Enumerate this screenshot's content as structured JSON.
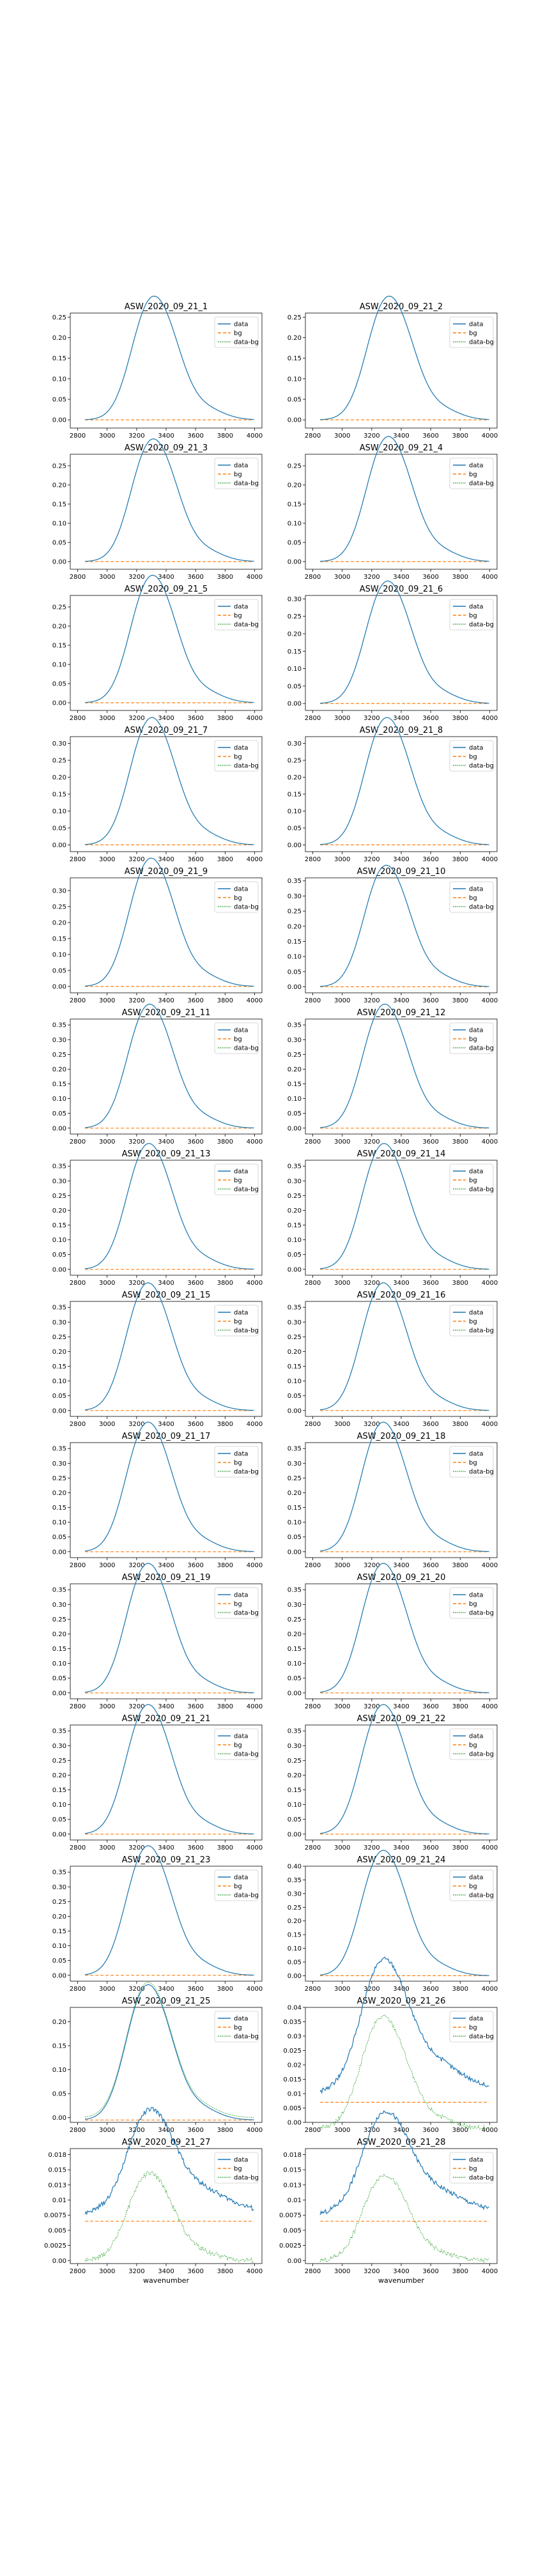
{
  "legend": {
    "data": "data",
    "bg": "bg",
    "data_bg": "data-bg"
  },
  "colors": {
    "data": "#1f77b4",
    "bg": "#ff7f0e",
    "data_bg": "#2ca02c"
  },
  "xlabel": "wavenumber",
  "xticks": [
    2800,
    3000,
    3200,
    3400,
    3600,
    3800,
    4000
  ],
  "chart_data": [
    {
      "type": "line",
      "title": "ASW_2020_09_21_1",
      "peak": 0.24,
      "peak_x": 3270,
      "bg_level": 0.0,
      "dbg_offset": 0.0,
      "noise": 0.0,
      "ylim": [
        -0.02,
        0.26
      ],
      "yticks": [
        0,
        0.05,
        0.1,
        0.15,
        0.2,
        0.25
      ]
    },
    {
      "type": "line",
      "title": "ASW_2020_09_21_2",
      "peak": 0.24,
      "peak_x": 3270,
      "bg_level": 0.0,
      "dbg_offset": 0.0,
      "noise": 0.0,
      "ylim": [
        -0.02,
        0.26
      ],
      "yticks": [
        0,
        0.05,
        0.1,
        0.15,
        0.2,
        0.25
      ]
    },
    {
      "type": "line",
      "title": "ASW_2020_09_21_3",
      "peak": 0.255,
      "peak_x": 3265,
      "bg_level": 0.0,
      "dbg_offset": 0.0,
      "noise": 0.0,
      "ylim": [
        -0.02,
        0.28
      ],
      "yticks": [
        0,
        0.05,
        0.1,
        0.15,
        0.2,
        0.25
      ]
    },
    {
      "type": "line",
      "title": "ASW_2020_09_21_4",
      "peak": 0.26,
      "peak_x": 3265,
      "bg_level": 0.0,
      "dbg_offset": 0.0,
      "noise": 0.0,
      "ylim": [
        -0.02,
        0.28
      ],
      "yticks": [
        0,
        0.05,
        0.1,
        0.15,
        0.2,
        0.25
      ]
    },
    {
      "type": "line",
      "title": "ASW_2020_09_21_5",
      "peak": 0.265,
      "peak_x": 3260,
      "bg_level": 0.0,
      "dbg_offset": 0.0,
      "noise": 0.0,
      "ylim": [
        -0.02,
        0.28
      ],
      "yticks": [
        0,
        0.05,
        0.1,
        0.15,
        0.2,
        0.25
      ]
    },
    {
      "type": "line",
      "title": "ASW_2020_09_21_6",
      "peak": 0.28,
      "peak_x": 3260,
      "bg_level": 0.0,
      "dbg_offset": 0.0,
      "noise": 0.0,
      "ylim": [
        -0.02,
        0.31
      ],
      "yticks": [
        0,
        0.05,
        0.1,
        0.15,
        0.2,
        0.25,
        0.3
      ]
    },
    {
      "type": "line",
      "title": "ASW_2020_09_21_7",
      "peak": 0.3,
      "peak_x": 3255,
      "bg_level": 0.0,
      "dbg_offset": 0.0,
      "noise": 0.0,
      "ylim": [
        -0.02,
        0.32
      ],
      "yticks": [
        0,
        0.05,
        0.1,
        0.15,
        0.2,
        0.25,
        0.3
      ]
    },
    {
      "type": "line",
      "title": "ASW_2020_09_21_8",
      "peak": 0.3,
      "peak_x": 3255,
      "bg_level": 0.0,
      "dbg_offset": 0.0,
      "noise": 0.0,
      "ylim": [
        -0.02,
        0.32
      ],
      "yticks": [
        0,
        0.05,
        0.1,
        0.15,
        0.2,
        0.25,
        0.3
      ]
    },
    {
      "type": "line",
      "title": "ASW_2020_09_21_9",
      "peak": 0.32,
      "peak_x": 3250,
      "bg_level": 0.0,
      "dbg_offset": 0.0,
      "noise": 0.0,
      "ylim": [
        -0.02,
        0.34
      ],
      "yticks": [
        0,
        0.05,
        0.1,
        0.15,
        0.2,
        0.25,
        0.3
      ]
    },
    {
      "type": "line",
      "title": "ASW_2020_09_21_10",
      "peak": 0.32,
      "peak_x": 3250,
      "bg_level": 0.0,
      "dbg_offset": 0.0,
      "noise": 0.0,
      "ylim": [
        -0.02,
        0.36
      ],
      "yticks": [
        0,
        0.05,
        0.1,
        0.15,
        0.2,
        0.25,
        0.3,
        0.35
      ]
    },
    {
      "type": "line",
      "title": "ASW_2020_09_21_11",
      "peak": 0.335,
      "peak_x": 3240,
      "bg_level": 0.0,
      "dbg_offset": 0.0,
      "noise": 0.0,
      "ylim": [
        -0.02,
        0.37
      ],
      "yticks": [
        0,
        0.05,
        0.1,
        0.15,
        0.2,
        0.25,
        0.3,
        0.35
      ]
    },
    {
      "type": "line",
      "title": "ASW_2020_09_21_12",
      "peak": 0.335,
      "peak_x": 3240,
      "bg_level": 0.0,
      "dbg_offset": 0.0,
      "noise": 0.0,
      "ylim": [
        -0.02,
        0.37
      ],
      "yticks": [
        0,
        0.05,
        0.1,
        0.15,
        0.2,
        0.25,
        0.3,
        0.35
      ]
    },
    {
      "type": "line",
      "title": "ASW_2020_09_21_13",
      "peak": 0.34,
      "peak_x": 3235,
      "bg_level": 0.0,
      "dbg_offset": 0.0,
      "noise": 0.0,
      "ylim": [
        -0.02,
        0.37
      ],
      "yticks": [
        0,
        0.05,
        0.1,
        0.15,
        0.2,
        0.25,
        0.3,
        0.35
      ]
    },
    {
      "type": "line",
      "title": "ASW_2020_09_21_14",
      "peak": 0.34,
      "peak_x": 3235,
      "bg_level": 0.0,
      "dbg_offset": 0.0,
      "noise": 0.0,
      "ylim": [
        -0.02,
        0.37
      ],
      "yticks": [
        0,
        0.05,
        0.1,
        0.15,
        0.2,
        0.25,
        0.3,
        0.35
      ]
    },
    {
      "type": "line",
      "title": "ASW_2020_09_21_15",
      "peak": 0.345,
      "peak_x": 3230,
      "bg_level": 0.0,
      "dbg_offset": 0.0,
      "noise": 0.0,
      "ylim": [
        -0.02,
        0.37
      ],
      "yticks": [
        0,
        0.05,
        0.1,
        0.15,
        0.2,
        0.25,
        0.3,
        0.35
      ]
    },
    {
      "type": "line",
      "title": "ASW_2020_09_21_16",
      "peak": 0.345,
      "peak_x": 3230,
      "bg_level": 0.0,
      "dbg_offset": 0.0,
      "noise": 0.0,
      "ylim": [
        -0.02,
        0.37
      ],
      "yticks": [
        0,
        0.05,
        0.1,
        0.15,
        0.2,
        0.25,
        0.3,
        0.35
      ]
    },
    {
      "type": "line",
      "title": "ASW_2020_09_21_17",
      "peak": 0.35,
      "peak_x": 3230,
      "bg_level": 0.0,
      "dbg_offset": 0.0,
      "noise": 0.0,
      "ylim": [
        -0.02,
        0.37
      ],
      "yticks": [
        0,
        0.05,
        0.1,
        0.15,
        0.2,
        0.25,
        0.3,
        0.35
      ]
    },
    {
      "type": "line",
      "title": "ASW_2020_09_21_18",
      "peak": 0.35,
      "peak_x": 3230,
      "bg_level": 0.0,
      "dbg_offset": 0.0,
      "noise": 0.0,
      "ylim": [
        -0.02,
        0.37
      ],
      "yticks": [
        0,
        0.05,
        0.1,
        0.15,
        0.2,
        0.25,
        0.3,
        0.35
      ]
    },
    {
      "type": "line",
      "title": "ASW_2020_09_21_19",
      "peak": 0.35,
      "peak_x": 3230,
      "bg_level": 0.0,
      "dbg_offset": 0.0,
      "noise": 0.0,
      "ylim": [
        -0.02,
        0.37
      ],
      "yticks": [
        0,
        0.05,
        0.1,
        0.15,
        0.2,
        0.25,
        0.3,
        0.35
      ]
    },
    {
      "type": "line",
      "title": "ASW_2020_09_21_20",
      "peak": 0.35,
      "peak_x": 3230,
      "bg_level": 0.0,
      "dbg_offset": 0.0,
      "noise": 0.0,
      "ylim": [
        -0.02,
        0.37
      ],
      "yticks": [
        0,
        0.05,
        0.1,
        0.15,
        0.2,
        0.25,
        0.3,
        0.35
      ]
    },
    {
      "type": "line",
      "title": "ASW_2020_09_21_21",
      "peak": 0.35,
      "peak_x": 3230,
      "bg_level": 0.0,
      "dbg_offset": 0.0,
      "noise": 0.0,
      "ylim": [
        -0.02,
        0.37
      ],
      "yticks": [
        0,
        0.05,
        0.1,
        0.15,
        0.2,
        0.25,
        0.3,
        0.35
      ]
    },
    {
      "type": "line",
      "title": "ASW_2020_09_21_22",
      "peak": 0.35,
      "peak_x": 3230,
      "bg_level": 0.0,
      "dbg_offset": 0.0,
      "noise": 0.0,
      "ylim": [
        -0.02,
        0.37
      ],
      "yticks": [
        0,
        0.05,
        0.1,
        0.15,
        0.2,
        0.25,
        0.3,
        0.35
      ]
    },
    {
      "type": "line",
      "title": "ASW_2020_09_21_23",
      "peak": 0.35,
      "peak_x": 3230,
      "bg_level": 0.0,
      "dbg_offset": 0.0,
      "noise": 0.0,
      "ylim": [
        -0.02,
        0.37
      ],
      "yticks": [
        0,
        0.05,
        0.1,
        0.15,
        0.2,
        0.25,
        0.3,
        0.35
      ]
    },
    {
      "type": "line",
      "title": "ASW_2020_09_21_24",
      "peak": 0.365,
      "peak_x": 3230,
      "bg_level": 0.0,
      "dbg_offset": 0.0,
      "noise": 0.0,
      "ylim": [
        -0.02,
        0.4
      ],
      "yticks": [
        0,
        0.05,
        0.1,
        0.15,
        0.2,
        0.25,
        0.3,
        0.35,
        0.4
      ]
    },
    {
      "type": "line",
      "title": "ASW_2020_09_21_25",
      "peak": 0.22,
      "peak_x": 3230,
      "bg_level": -0.005,
      "dbg_offset": 0.0,
      "noise": 0.0,
      "ylim": [
        -0.01,
        0.23
      ],
      "yticks": [
        0,
        0.05,
        0.1,
        0.15,
        0.2
      ]
    },
    {
      "type": "line",
      "title": "ASW_2020_09_21_26",
      "peak": 0.038,
      "peak_x": 3230,
      "bg_level": 0.007,
      "dbg_offset": -0.002,
      "noise": 0.0008,
      "ylim": [
        0,
        0.04
      ],
      "yticks": [
        0,
        0.005,
        0.01,
        0.015,
        0.02,
        0.025,
        0.03,
        0.035,
        0.04
      ]
    },
    {
      "type": "line",
      "title": "ASW_2020_09_21_27",
      "peak": 0.018,
      "peak_x": 3240,
      "bg_level": 0.0065,
      "dbg_offset": 0.0,
      "noise": 0.0004,
      "ylim": [
        -0.0005,
        0.0185
      ],
      "yticks": [
        0,
        0.0025,
        0.005,
        0.0075,
        0.01,
        0.0125,
        0.015,
        0.0175
      ]
    },
    {
      "type": "line",
      "title": "ASW_2020_09_21_28",
      "peak": 0.0178,
      "peak_x": 3240,
      "bg_level": 0.0065,
      "dbg_offset": 0.0,
      "noise": 0.0004,
      "ylim": [
        -0.0005,
        0.0185
      ],
      "yticks": [
        0,
        0.0025,
        0.005,
        0.0075,
        0.01,
        0.0125,
        0.015,
        0.0175
      ]
    }
  ]
}
